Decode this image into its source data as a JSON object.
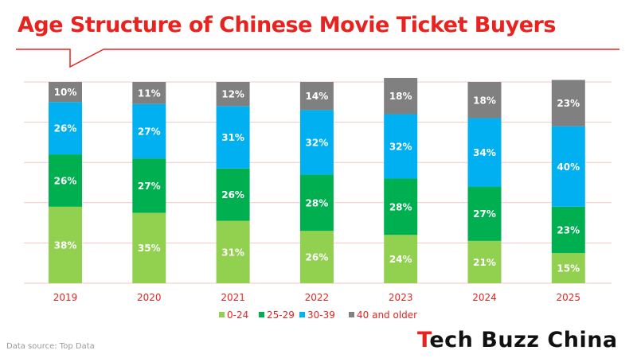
{
  "chart_data": {
    "type": "bar",
    "stacked": true,
    "title": "Age Structure of Chinese Movie Ticket Buyers",
    "categories": [
      "2019",
      "2020",
      "2021",
      "2022",
      "2023",
      "2024",
      "2025"
    ],
    "series": [
      {
        "name": "0-24",
        "values": [
          38,
          35,
          31,
          26,
          24,
          21,
          15
        ],
        "color": "#92d050"
      },
      {
        "name": "25-29",
        "values": [
          26,
          27,
          26,
          28,
          28,
          27,
          23
        ],
        "color": "#00b050"
      },
      {
        "name": "30-39",
        "values": [
          26,
          27,
          31,
          32,
          32,
          34,
          40
        ],
        "color": "#00b0f0"
      },
      {
        "name": "40 and older",
        "values": [
          10,
          11,
          12,
          14,
          18,
          18,
          23
        ],
        "color": "#808080"
      }
    ],
    "value_suffix": "%",
    "ylim": [
      0,
      100
    ],
    "grid": true,
    "legend_position": "bottom-center"
  },
  "footer": {
    "source": "Data source: Top Data",
    "brand_main": "Tech Buzz China",
    "brand_accent_letter": "T"
  },
  "colors": {
    "accent": "#e8231f",
    "gridline": "#f4c6c6"
  }
}
